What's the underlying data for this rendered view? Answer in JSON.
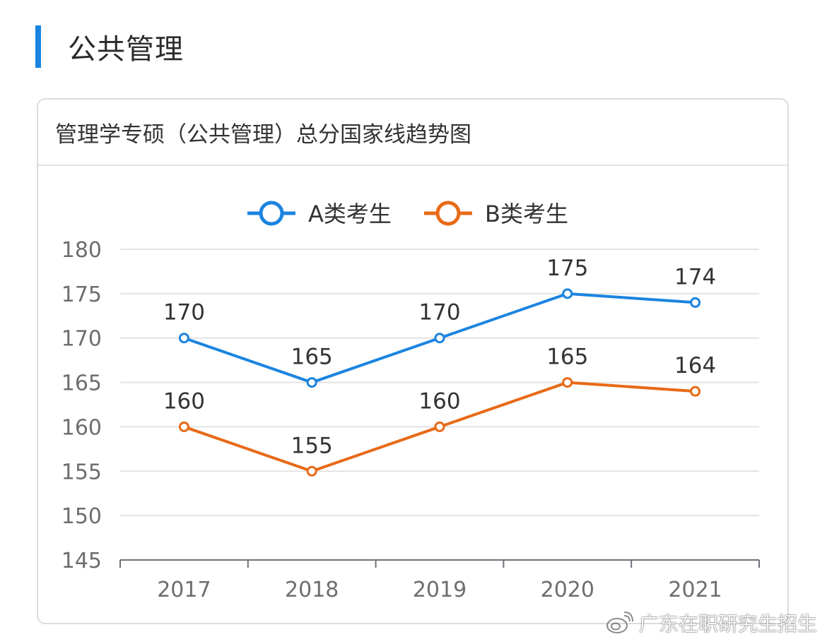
{
  "section": {
    "title": "公共管理",
    "accent_color": "#1a84e0"
  },
  "card": {
    "title": "管理学专硕（公共管理）总分国家线趋势图"
  },
  "watermark": {
    "text": "广东在职研究生招生",
    "icon": "weibo-icon"
  },
  "chart_data": {
    "type": "line",
    "categories": [
      "2017",
      "2018",
      "2019",
      "2020",
      "2021"
    ],
    "series": [
      {
        "name": "A类考生",
        "values": [
          170,
          165,
          170,
          175,
          174
        ],
        "color": "#1b84e0"
      },
      {
        "name": "B类考生",
        "values": [
          160,
          155,
          160,
          165,
          164
        ],
        "color": "#e86a17"
      }
    ],
    "yticks": [
      145,
      150,
      155,
      160,
      165,
      170,
      175,
      180
    ],
    "ylim": [
      145,
      180
    ],
    "grid": true,
    "legend_position": "top-center",
    "data_labels": true
  }
}
